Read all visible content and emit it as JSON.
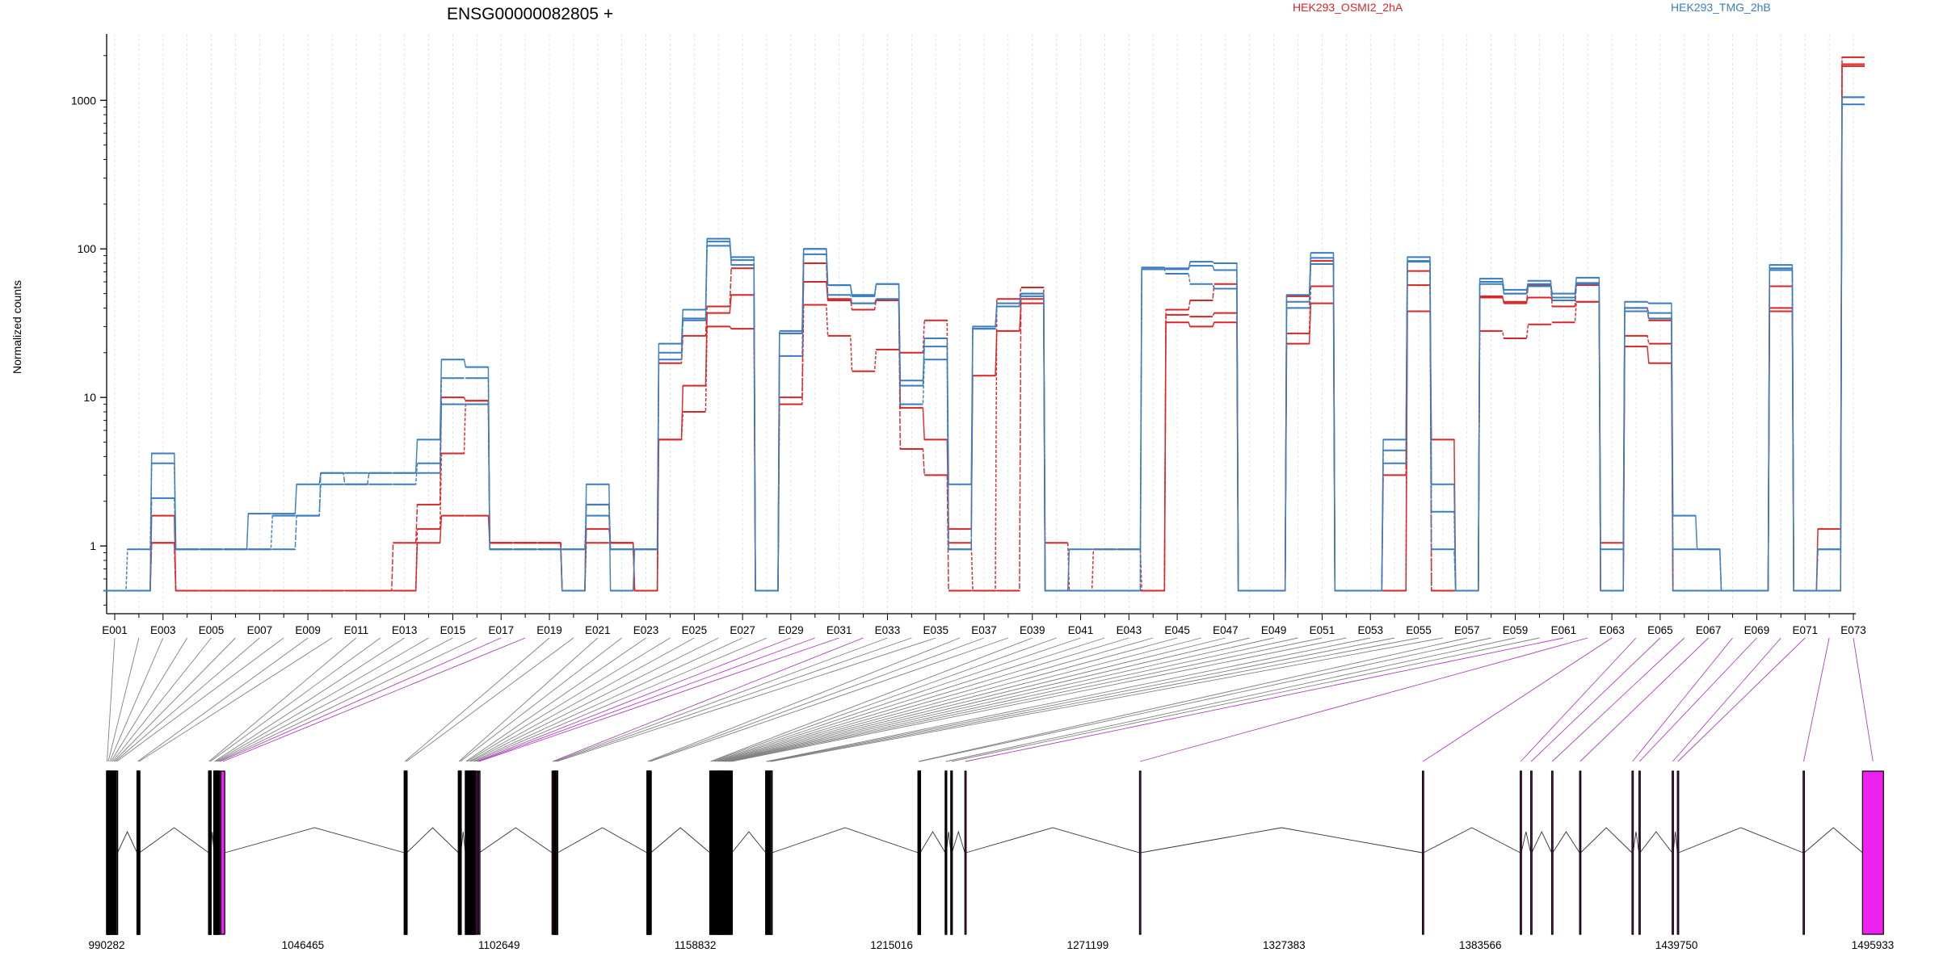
{
  "chart_data": {
    "type": "line",
    "title": "ENSG00000082805 +",
    "ylabel": "Normalized counts",
    "yscale": "log",
    "ylim": [
      0.35,
      2800
    ],
    "yticks": [
      1,
      10,
      100,
      1000
    ],
    "ytick_labels": [
      "1",
      "10",
      "100",
      "1000"
    ],
    "grid": true,
    "legend_placement": "top",
    "colors": {
      "HEK293_OSMI2_2hA": "#d62728",
      "HEK293_TMG_2hB": "#3b7dbf",
      "exon_highlight": "#ee22ee",
      "connector": "#808080",
      "connector_highlight": "#b040c0"
    },
    "x_tick_labels": [
      "E001",
      "E003",
      "E005",
      "E007",
      "E009",
      "E011",
      "E013",
      "E015",
      "E017",
      "E019",
      "E021",
      "E023",
      "E025",
      "E027",
      "E029",
      "E031",
      "E033",
      "E035",
      "E037",
      "E039",
      "E041",
      "E043",
      "E045",
      "E047",
      "E049",
      "E051",
      "E053",
      "E055",
      "E057",
      "E059",
      "E061",
      "E063",
      "E065",
      "E067",
      "E069",
      "E071",
      "E073"
    ],
    "exons": [
      "E001",
      "E002",
      "E003",
      "E004",
      "E005",
      "E006",
      "E007",
      "E008",
      "E009",
      "E010",
      "E011",
      "E012",
      "E013",
      "E014",
      "E015",
      "E016",
      "E017",
      "E018",
      "E019",
      "E020",
      "E021",
      "E022",
      "E023",
      "E024",
      "E025",
      "E026",
      "E027",
      "E028",
      "E029",
      "E030",
      "E031",
      "E032",
      "E033",
      "E034",
      "E035",
      "E036",
      "E037",
      "E038",
      "E039",
      "E040",
      "E041",
      "E042",
      "E043",
      "E044",
      "E045",
      "E046",
      "E047",
      "E048",
      "E049",
      "E050",
      "E051",
      "E052",
      "E053",
      "E054",
      "E055",
      "E056",
      "E057",
      "E058",
      "E059",
      "E060",
      "E061",
      "E062",
      "E063",
      "E064",
      "E065",
      "E066",
      "E067",
      "E068",
      "E069",
      "E070",
      "E071",
      "E072",
      "E073"
    ],
    "series": [
      {
        "name": "HEK293_OSMI2_2hA",
        "group": "HEK293_OSMI2_2hA",
        "values": [
          0.5,
          0.5,
          1.6,
          0.5,
          0.5,
          0.5,
          0.5,
          0.5,
          0.5,
          0.5,
          0.5,
          0.5,
          0.5,
          1.05,
          1.6,
          1.6,
          1.05,
          1.05,
          1.05,
          0.5,
          1.3,
          1.05,
          0.5,
          5.2,
          12,
          37,
          49,
          0.5,
          27,
          60,
          45,
          43,
          45,
          8.5,
          5.2,
          1.3,
          14,
          28,
          43,
          0.5,
          0.5,
          0.5,
          0.5,
          0.5,
          32,
          30,
          32,
          0.5,
          0.5,
          23,
          43,
          0.5,
          0.5,
          0.5,
          38,
          5.2,
          0.5,
          47,
          44,
          47,
          45,
          44,
          0.5,
          22,
          17,
          0.5,
          0.5,
          0.5,
          0.5,
          38,
          0.5,
          1.3,
          1750
        ]
      },
      {
        "name": "HEK293_OSMI2_2hA",
        "group": "HEK293_OSMI2_2hA",
        "values": [
          0.5,
          0.5,
          1.05,
          0.5,
          0.5,
          0.5,
          0.5,
          0.5,
          0.5,
          0.5,
          0.5,
          0.5,
          0.5,
          1.3,
          4.2,
          9.5,
          1.05,
          1.05,
          1.05,
          0.5,
          1.05,
          1.05,
          0.5,
          5.2,
          8,
          30,
          29,
          0.5,
          9,
          42,
          26,
          15,
          21,
          20,
          33,
          1.05,
          0.5,
          46,
          55,
          1.05,
          0.5,
          0.95,
          0.95,
          0.5,
          36,
          35,
          37,
          0.5,
          0.5,
          27,
          56,
          0.5,
          0.5,
          0.5,
          57,
          0.5,
          0.5,
          28,
          25,
          31,
          32,
          44,
          0.5,
          26,
          23,
          0.5,
          0.5,
          0.5,
          0.5,
          56,
          0.5,
          0.5,
          1950
        ]
      },
      {
        "name": "HEK293_OSMI2_2hA",
        "group": "HEK293_OSMI2_2hA",
        "values": [
          0.5,
          0.5,
          1.05,
          0.5,
          0.5,
          0.5,
          0.5,
          0.5,
          0.5,
          0.5,
          0.5,
          0.5,
          1.05,
          1.9,
          10,
          9.5,
          1.05,
          1.05,
          1.05,
          0.5,
          1.9,
          1.05,
          0.5,
          17,
          26,
          41,
          74,
          0.5,
          10,
          80,
          46,
          39,
          45,
          4.5,
          3.0,
          0.5,
          0.5,
          0.5,
          46,
          0.5,
          0.5,
          0.5,
          0.5,
          0.5,
          39,
          45,
          58,
          0.5,
          0.5,
          48,
          83,
          0.5,
          0.5,
          3.0,
          71,
          0.5,
          0.5,
          48,
          43,
          57,
          41,
          57,
          1.05,
          40,
          33,
          0.5,
          0.5,
          0.5,
          0.5,
          40,
          0.5,
          0.5,
          1700
        ]
      },
      {
        "name": "HEK293_TMG_2hB",
        "group": "HEK293_TMG_2hB",
        "values": [
          0.5,
          0.5,
          4.2,
          0.95,
          0.95,
          0.95,
          1.65,
          1.65,
          2.6,
          3.1,
          3.1,
          3.1,
          3.1,
          5.2,
          18,
          16,
          0.95,
          0.95,
          0.95,
          0.5,
          2.6,
          0.5,
          0.95,
          23,
          39,
          117,
          78,
          0.5,
          27,
          100,
          57,
          49,
          58,
          12,
          25,
          2.6,
          30,
          43,
          50,
          0.5,
          0.95,
          0.95,
          0.95,
          75,
          73,
          82,
          80,
          0.5,
          0.5,
          49,
          94,
          0.5,
          0.5,
          5.2,
          88,
          2.6,
          0.5,
          63,
          53,
          58,
          50,
          64,
          0.5,
          44,
          43,
          1.6,
          0.95,
          0.5,
          0.5,
          78,
          0.5,
          0.5,
          1050
        ]
      },
      {
        "name": "HEK293_TMG_2hB",
        "group": "HEK293_TMG_2hB",
        "values": [
          0.5,
          0.95,
          3.6,
          0.95,
          0.95,
          0.95,
          0.95,
          1.6,
          1.6,
          2.6,
          2.6,
          2.6,
          2.6,
          3.6,
          13.5,
          13.5,
          0.95,
          0.95,
          0.95,
          0.95,
          1.9,
          0.95,
          0.95,
          20,
          34,
          112,
          84,
          0.5,
          19,
          92,
          49,
          43,
          46,
          9,
          18,
          0.95,
          29,
          41,
          48,
          0.5,
          0.5,
          0.5,
          0.5,
          73,
          68,
          58,
          54,
          0.5,
          0.5,
          40,
          79,
          0.5,
          0.5,
          4.4,
          83,
          1.7,
          0.5,
          60,
          50,
          56,
          47,
          58,
          0.5,
          38,
          34,
          0.95,
          0.95,
          0.5,
          0.5,
          74,
          0.5,
          0.95,
          940
        ]
      },
      {
        "name": "HEK293_TMG_2hB",
        "group": "HEK293_TMG_2hB",
        "values": [
          0.5,
          0.5,
          2.1,
          0.95,
          0.95,
          0.95,
          0.95,
          0.95,
          1.6,
          3.1,
          2.6,
          3.1,
          3.1,
          3.1,
          9,
          9,
          0.95,
          0.95,
          0.95,
          0.95,
          1.6,
          0.95,
          0.95,
          18,
          33,
          105,
          88,
          0.5,
          28,
          100,
          57,
          48,
          58,
          13,
          22,
          0.95,
          29,
          41,
          50,
          0.5,
          0.5,
          0.5,
          0.5,
          73,
          74,
          77,
          72,
          0.5,
          0.5,
          44,
          87,
          0.5,
          0.5,
          3.6,
          82,
          0.95,
          0.5,
          58,
          50,
          61,
          45,
          59,
          0.95,
          40,
          37,
          0.5,
          0.5,
          0.5,
          0.5,
          72,
          0.5,
          0.95,
          1050
        ]
      }
    ],
    "genome_ticks": [
      "990282",
      "1046465",
      "1102649",
      "1158832",
      "1215016",
      "1271199",
      "1327383",
      "1383566",
      "1439750",
      "1495933"
    ],
    "genome_range": [
      990282,
      1495933
    ],
    "highlighted_exons": [
      "E017",
      "E018",
      "E029",
      "E030",
      "E031",
      "E032",
      "E061",
      "E062",
      "E063",
      "E064",
      "E065",
      "E066",
      "E067",
      "E068",
      "E069",
      "E070",
      "E071",
      "E072",
      "E073"
    ],
    "exon_genomic_positions": [
      990282,
      990600,
      991000,
      991400,
      991800,
      992200,
      992600,
      993000,
      999000,
      999400,
      1019500,
      1019800,
      1021000,
      1021400,
      1021800,
      1022200,
      1022600,
      1023000,
      1075500,
      1075900,
      1091000,
      1091400,
      1093000,
      1093400,
      1094000,
      1094400,
      1095000,
      1095400,
      1096000,
      1096400,
      1096800,
      1117800,
      1118200,
      1118600,
      1119000,
      1145000,
      1145400,
      1145800,
      1163000,
      1163400,
      1164000,
      1164400,
      1165000,
      1165400,
      1165800,
      1166200,
      1166600,
      1167000,
      1167400,
      1168000,
      1168400,
      1169000,
      1179000,
      1179400,
      1180000,
      1180400,
      1222600,
      1222900,
      1230400,
      1232000,
      1236000,
      1286000,
      1367000,
      1395000,
      1398000,
      1404000,
      1412000,
      1427000,
      1429000,
      1438500,
      1440000,
      1476000,
      1493000
    ],
    "exon_genomic_ends": [
      990500,
      990900,
      991300,
      991700,
      992100,
      992500,
      992900,
      993400,
      999300,
      999700,
      1019700,
      1020100,
      1021300,
      1021700,
      1022100,
      1022500,
      1022900,
      1024100,
      1075800,
      1076200,
      1091300,
      1091700,
      1093300,
      1093700,
      1094300,
      1094700,
      1095300,
      1095700,
      1096300,
      1096700,
      1097000,
      1118100,
      1118500,
      1118900,
      1119400,
      1145300,
      1145700,
      1146100,
      1163300,
      1163700,
      1164300,
      1164700,
      1165300,
      1165700,
      1166100,
      1166500,
      1166900,
      1167300,
      1167700,
      1168300,
      1168700,
      1169300,
      1179300,
      1179700,
      1180300,
      1180800,
      1222800,
      1223200,
      1230700,
      1232300,
      1236300,
      1286300,
      1367300,
      1395300,
      1398300,
      1404300,
      1412300,
      1427300,
      1429300,
      1438800,
      1440300,
      1476300,
      1499000
    ]
  }
}
